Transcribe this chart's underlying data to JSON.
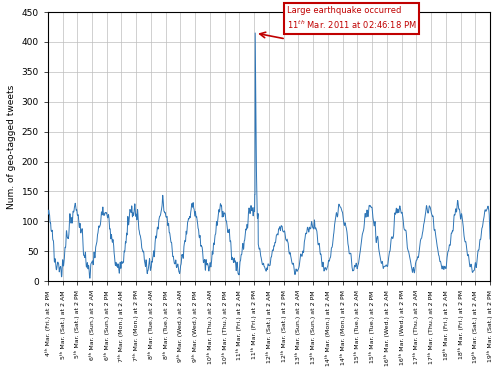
{
  "title": "",
  "ylabel": "Num. of geo-tagged tweets",
  "ylim": [
    0,
    450
  ],
  "yticks": [
    0,
    50,
    100,
    150,
    200,
    250,
    300,
    350,
    400,
    450
  ],
  "line_color": "#2E75B6",
  "annotation_color": "#C00000",
  "annotation_box_color": "#C00000",
  "background_color": "#FFFFFF",
  "grid_color": "#BEBEBE",
  "figsize": [
    5.0,
    3.73
  ],
  "dpi": 100,
  "tick_labels": [
    "4ᵗʰ Mar. (Fri.) at 2 PM",
    "5ᵗʰ Mar. (Sat.) at 2 AM",
    "5ᵗʰ Mar. (Sat.) at 2 PM",
    "6ᵗʰ Mar. (Sun.) at 2 AM",
    "6ᵗʰ Mar. (Sun.) at 2 PM",
    "7ᵗʰ Mar. (Mon.) at 2 AM",
    "7ᵗʰ Mar. (Mon.) at 2 PM",
    "8ᵗʰ Mar. (Tue.) at 2 AM",
    "8ᵗʰ Mar. (Tue.) at 2 PM",
    "9ᵗʰ Mar. (Wed.) at 2 AM",
    "9ᵗʰ Mar. (Wed.) at 2 PM",
    "10ᵗʰ Mar. (Thu.) at 2 AM",
    "10ᵗʰ Mar. (Thu.) at 2 PM",
    "11ᵗʰ Mar. (Fri.) at 2 AM",
    "11ᵗʰ Mar. (Fri.) at 2 PM",
    "12ᵗʰ Mar. (Sat.) at 2 AM",
    "12ᵗʰ Mar. (Sat.) at 2 PM",
    "13ᵗʰ Mar. (Sun.) at 2 AM",
    "13ᵗʰ Mar. (Sun.) at 2 PM",
    "14ᵗʰ Mar. (Mon.) at 2 AM",
    "14ᵗʰ Mar. (Mon.) at 2 PM",
    "15ᵗʰ Mar. (Tue.) at 2 AM",
    "15ᵗʰ Mar. (Tue.) at 2 PM",
    "16ᵗʰ Mar. (Wed.) at 2 AM",
    "16ᵗʰ Mar. (Wed.) at 2 PM",
    "17ᵗʰ Mar. (Thu.) at 2 AM",
    "17ᵗʰ Mar. (Thu.) at 2 PM",
    "18ᵗʰ Mar. (Fri.) at 2 AM",
    "18ᵗʰ Mar. (Fri.) at 2 PM",
    "19ᵗʰ Mar. (Sat.) at 2 AM",
    "19ᵗʰ Mar. (Sat.) at 2 PM"
  ]
}
